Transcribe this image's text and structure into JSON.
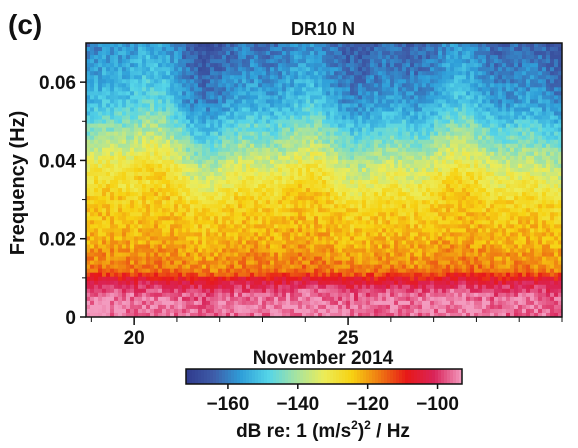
{
  "panel_label": "(c)",
  "chart_data": {
    "type": "heatmap",
    "title": "DR10  N",
    "xlabel": "November  2014",
    "ylabel": "Frequency (Hz)",
    "x_domain": [
      "2014-11-18T21:00",
      "2014-11-30T00:00"
    ],
    "x_ticks": [
      {
        "value": "2014-11-20",
        "label": "20"
      },
      {
        "value": "2014-11-25",
        "label": "25"
      }
    ],
    "y_range": [
      0,
      0.07
    ],
    "y_ticks": [
      {
        "value": 0,
        "label": "0"
      },
      {
        "value": 0.02,
        "label": "0.02"
      },
      {
        "value": 0.04,
        "label": "0.04"
      },
      {
        "value": 0.06,
        "label": "0.06"
      }
    ],
    "colorbar": {
      "label": "dB  re: 1 (m/s",
      "label_sup": "2",
      "label_tail": ")",
      "label_sup2": "2",
      "label_end": " / Hz",
      "range": [
        -172,
        -93
      ],
      "ticks": [
        {
          "value": -160,
          "label": "−160"
        },
        {
          "value": -140,
          "label": "−140"
        },
        {
          "value": -120,
          "label": "−120"
        },
        {
          "value": -100,
          "label": "−100"
        }
      ],
      "colors": [
        "#303a8c",
        "#3e5ca8",
        "#2f9fd9",
        "#55d5e8",
        "#a6e3a0",
        "#ecec58",
        "#f7d212",
        "#ef7a12",
        "#e71818",
        "#d9245a",
        "#f39bbf"
      ]
    },
    "level_profile_db": [
      {
        "frequency": 0.0,
        "db": -96
      },
      {
        "frequency": 0.003,
        "db": -95
      },
      {
        "frequency": 0.006,
        "db": -97
      },
      {
        "frequency": 0.009,
        "db": -104
      },
      {
        "frequency": 0.012,
        "db": -117
      },
      {
        "frequency": 0.02,
        "db": -122
      },
      {
        "frequency": 0.03,
        "db": -126
      },
      {
        "frequency": 0.038,
        "db": -134
      },
      {
        "frequency": 0.045,
        "db": -143
      },
      {
        "frequency": 0.055,
        "db": -155
      },
      {
        "frequency": 0.07,
        "db": -162
      }
    ]
  }
}
